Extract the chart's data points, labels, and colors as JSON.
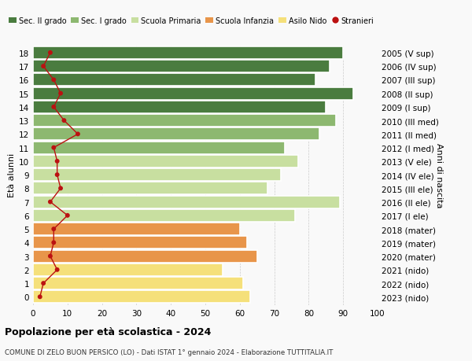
{
  "ages": [
    0,
    1,
    2,
    3,
    4,
    5,
    6,
    7,
    8,
    9,
    10,
    11,
    12,
    13,
    14,
    15,
    16,
    17,
    18
  ],
  "bar_values": [
    63,
    61,
    55,
    65,
    62,
    60,
    76,
    89,
    68,
    72,
    77,
    73,
    83,
    88,
    85,
    93,
    82,
    86,
    90
  ],
  "stranieri": [
    2,
    3,
    7,
    5,
    6,
    6,
    10,
    5,
    8,
    7,
    7,
    6,
    13,
    9,
    6,
    8,
    6,
    3,
    5
  ],
  "right_labels": [
    "2023 (nido)",
    "2022 (nido)",
    "2021 (nido)",
    "2020 (mater)",
    "2019 (mater)",
    "2018 (mater)",
    "2017 (I ele)",
    "2016 (II ele)",
    "2015 (III ele)",
    "2014 (IV ele)",
    "2013 (V ele)",
    "2012 (I med)",
    "2011 (II med)",
    "2010 (III med)",
    "2009 (I sup)",
    "2008 (II sup)",
    "2007 (III sup)",
    "2006 (IV sup)",
    "2005 (V sup)"
  ],
  "bar_colors": [
    "#f5e07a",
    "#f5e07a",
    "#f5e07a",
    "#e8954a",
    "#e8954a",
    "#e8954a",
    "#c8dfa0",
    "#c8dfa0",
    "#c8dfa0",
    "#c8dfa0",
    "#c8dfa0",
    "#8db870",
    "#8db870",
    "#8db870",
    "#4a7c3f",
    "#4a7c3f",
    "#4a7c3f",
    "#4a7c3f",
    "#4a7c3f"
  ],
  "legend_labels": [
    "Sec. II grado",
    "Sec. I grado",
    "Scuola Primaria",
    "Scuola Infanzia",
    "Asilo Nido",
    "Stranieri"
  ],
  "legend_colors": [
    "#4a7c3f",
    "#8db870",
    "#c8dfa0",
    "#e8954a",
    "#f5e07a",
    "#bb1111"
  ],
  "ylabel_left": "Età alunni",
  "ylabel_right": "Anni di nascita",
  "title": "Popolazione per età scolastica - 2024",
  "subtitle": "COMUNE DI ZELO BUON PERSICO (LO) - Dati ISTAT 1° gennaio 2024 - Elaborazione TUTTITALIA.IT",
  "xlim": [
    0,
    100
  ],
  "xticks": [
    0,
    10,
    20,
    30,
    40,
    50,
    60,
    70,
    80,
    90,
    100
  ],
  "bg_color": "#f9f9f9",
  "stranieri_color": "#bb1111"
}
